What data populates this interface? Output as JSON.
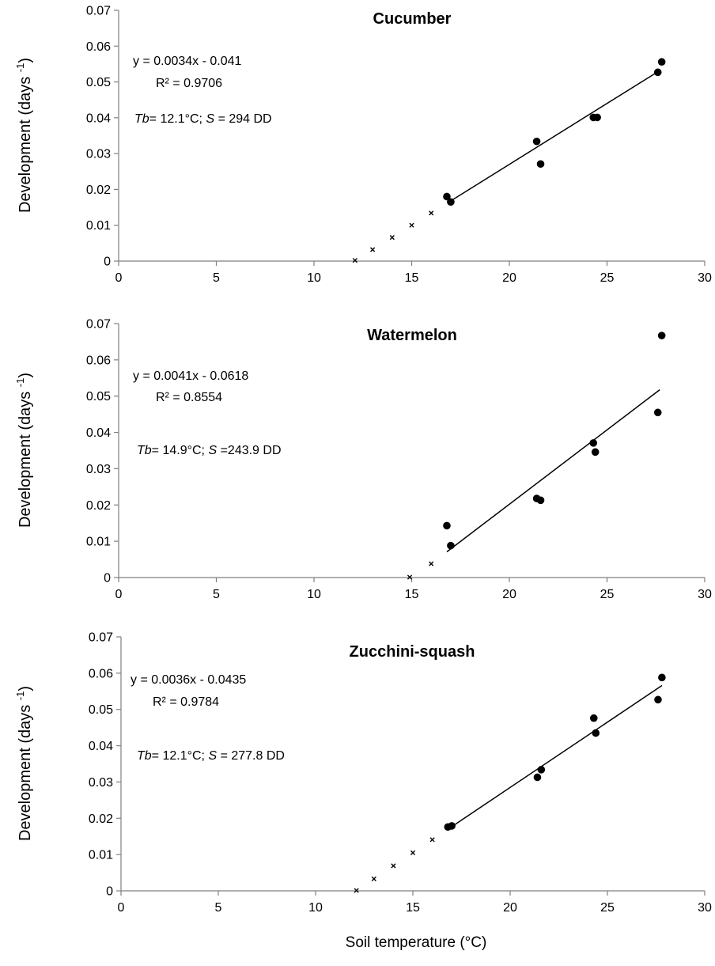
{
  "xlabel": "Soil temperature (°C)",
  "chart_data": [
    {
      "type": "scatter",
      "title": "Cucumber",
      "ylabel": "Development (days -1)",
      "xlim": [
        0,
        30
      ],
      "ylim": [
        0,
        0.07
      ],
      "x_ticks": [
        0,
        5,
        10,
        15,
        20,
        25,
        30
      ],
      "y_ticks": [
        0,
        0.01,
        0.02,
        0.03,
        0.04,
        0.05,
        0.06,
        0.07
      ],
      "x_tick_labels": [
        "0",
        "5",
        "10",
        "15",
        "20",
        "25",
        "30"
      ],
      "y_tick_labels": [
        "0",
        "0.01",
        "0.02",
        "0.03",
        "0.04",
        "0.05",
        "0.06",
        "0.07"
      ],
      "equation": "y = 0.0034x - 0.041",
      "r2": "R² = 0.9706",
      "tb_label": "Tb",
      "tb_text": "= 12.1°C; ",
      "s_label": "S",
      "s_text": " = 294 DD",
      "series": [
        {
          "marker": "circle",
          "points": [
            [
              16.8,
              0.018
            ],
            [
              17.0,
              0.0165
            ],
            [
              21.4,
              0.0334
            ],
            [
              21.6,
              0.0271
            ],
            [
              24.3,
              0.0401
            ],
            [
              24.5,
              0.0401
            ],
            [
              27.6,
              0.0527
            ],
            [
              27.8,
              0.0556
            ]
          ]
        },
        {
          "marker": "x",
          "points": [
            [
              12.1,
              0.0002
            ],
            [
              13.0,
              0.0032
            ],
            [
              14.0,
              0.0066
            ],
            [
              15.0,
              0.01
            ],
            [
              16.0,
              0.0134
            ]
          ]
        }
      ],
      "trendline": {
        "slope": 0.0034,
        "intercept": -0.041,
        "x_range": [
          16.9,
          27.6
        ]
      }
    },
    {
      "type": "scatter",
      "title": "Watermelon",
      "ylabel": "Development (days -1)",
      "xlim": [
        0,
        30
      ],
      "ylim": [
        0,
        0.07
      ],
      "x_ticks": [
        0,
        5,
        10,
        15,
        20,
        25,
        30
      ],
      "y_ticks": [
        0,
        0.01,
        0.02,
        0.03,
        0.04,
        0.05,
        0.06,
        0.07
      ],
      "x_tick_labels": [
        "0",
        "5",
        "10",
        "15",
        "20",
        "25",
        "30"
      ],
      "y_tick_labels": [
        "0",
        "0.01",
        "0.02",
        "0.03",
        "0.04",
        "0.05",
        "0.06",
        "0.07"
      ],
      "equation": "y = 0.0041x - 0.0618",
      "r2": "R² = 0.8554",
      "tb_label": "Tb",
      "tb_text": "= 14.9°C; ",
      "s_label": "S",
      "s_text": " =243.9 DD",
      "series": [
        {
          "marker": "circle",
          "points": [
            [
              16.8,
              0.0143
            ],
            [
              17.0,
              0.0088
            ],
            [
              21.4,
              0.0218
            ],
            [
              21.6,
              0.0213
            ],
            [
              24.3,
              0.0371
            ],
            [
              24.4,
              0.0346
            ],
            [
              27.6,
              0.0455
            ],
            [
              27.8,
              0.0667
            ]
          ]
        },
        {
          "marker": "x",
          "points": [
            [
              14.9,
              0.0001
            ],
            [
              16.0,
              0.0038
            ]
          ]
        }
      ],
      "trendline": {
        "slope": 0.0041,
        "intercept": -0.0618,
        "x_range": [
          16.8,
          27.7
        ]
      }
    },
    {
      "type": "scatter",
      "title": "Zucchini-squash",
      "ylabel": "Development (days -1)",
      "xlim": [
        0,
        30
      ],
      "ylim": [
        0,
        0.07
      ],
      "x_ticks": [
        0,
        5,
        10,
        15,
        20,
        25,
        30
      ],
      "y_ticks": [
        0,
        0.01,
        0.02,
        0.03,
        0.04,
        0.05,
        0.06,
        0.07
      ],
      "x_tick_labels": [
        "0",
        "5",
        "10",
        "15",
        "20",
        "25",
        "30"
      ],
      "y_tick_labels": [
        "0",
        "0.01",
        "0.02",
        "0.03",
        "0.04",
        "0.05",
        "0.06",
        "0.07"
      ],
      "equation": "y = 0.0036x - 0.0435",
      "r2": "R² = 0.9784",
      "tb_label": "Tb",
      "tb_text": "= 12.1°C; ",
      "s_label": "S",
      "s_text": " = 277.8 DD",
      "series": [
        {
          "marker": "circle",
          "points": [
            [
              16.8,
              0.0176
            ],
            [
              17.0,
              0.0179
            ],
            [
              21.4,
              0.0313
            ],
            [
              21.6,
              0.0334
            ],
            [
              24.3,
              0.0476
            ],
            [
              24.4,
              0.0435
            ],
            [
              27.6,
              0.0527
            ],
            [
              27.8,
              0.0588
            ]
          ]
        },
        {
          "marker": "x",
          "points": [
            [
              12.1,
              0.0001
            ],
            [
              13.0,
              0.0033
            ],
            [
              14.0,
              0.0069
            ],
            [
              15.0,
              0.0105
            ],
            [
              16.0,
              0.0141
            ]
          ]
        }
      ],
      "trendline": {
        "slope": 0.0036,
        "intercept": -0.0435,
        "x_range": [
          17.0,
          27.8
        ]
      }
    }
  ]
}
